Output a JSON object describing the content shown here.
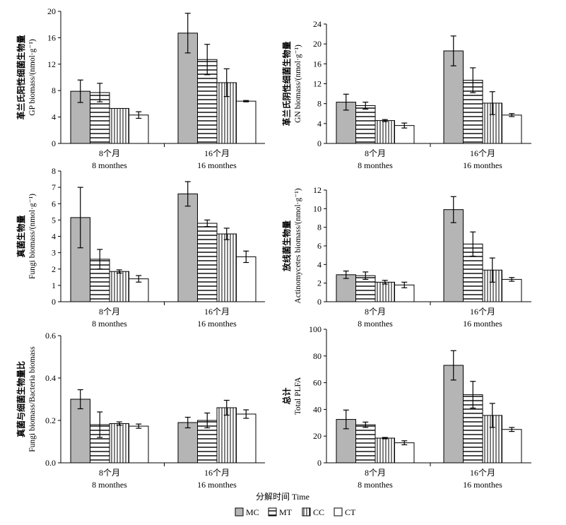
{
  "figure": {
    "x_title": "分解时间 Time",
    "legend": [
      {
        "key": "MC",
        "label": "MC"
      },
      {
        "key": "MT",
        "label": "MT"
      },
      {
        "key": "CC",
        "label": "CC"
      },
      {
        "key": "CT",
        "label": "CT"
      }
    ]
  },
  "chart_data": [
    {
      "type": "bar",
      "panel": "top-left",
      "ylabel_cn": "革兰氏阳性细菌生物量",
      "ylabel_en": "GP biomass/(nmol·g⁻¹)",
      "ylim": [
        0,
        20
      ],
      "yticks": [
        "0",
        "4",
        "8",
        "12",
        "16",
        "20"
      ],
      "categories": [
        {
          "cn": "8个月",
          "en": "8 monthes"
        },
        {
          "cn": "16个月",
          "en": "16 monthes"
        }
      ],
      "series": [
        {
          "name": "MC",
          "values": [
            7.9,
            16.7
          ],
          "errors": [
            1.7,
            3.0
          ]
        },
        {
          "name": "MT",
          "values": [
            7.7,
            12.7
          ],
          "errors": [
            1.4,
            2.3
          ]
        },
        {
          "name": "CC",
          "values": [
            5.3,
            9.2
          ],
          "errors": [
            0.0,
            2.1
          ]
        },
        {
          "name": "CT",
          "values": [
            4.3,
            6.4
          ],
          "errors": [
            0.5,
            0.1
          ]
        }
      ]
    },
    {
      "type": "bar",
      "panel": "top-right",
      "ylabel_cn": "革兰氏阴性细菌生物量",
      "ylabel_en": "GN biomass/(nmol·g⁻¹)",
      "ylim": [
        0,
        24
      ],
      "yticks": [
        "0",
        "4",
        "8",
        "12",
        "16",
        "20",
        "24"
      ],
      "categories": [
        {
          "cn": "8个月",
          "en": "8 monthes"
        },
        {
          "cn": "16个月",
          "en": "16 monthes"
        }
      ],
      "series": [
        {
          "name": "MC",
          "values": [
            8.3,
            18.6
          ],
          "errors": [
            1.6,
            3.0
          ]
        },
        {
          "name": "MT",
          "values": [
            7.6,
            12.7
          ],
          "errors": [
            0.7,
            2.5
          ]
        },
        {
          "name": "CC",
          "values": [
            4.6,
            8.1
          ],
          "errors": [
            0.2,
            2.3
          ]
        },
        {
          "name": "CT",
          "values": [
            3.6,
            5.7
          ],
          "errors": [
            0.5,
            0.3
          ]
        }
      ]
    },
    {
      "type": "bar",
      "panel": "middle-left",
      "ylabel_cn": "真菌生物量",
      "ylabel_en": "Fungi biomass/(nmol·g⁻¹)",
      "ylim": [
        0,
        8
      ],
      "yticks": [
        "0",
        "1",
        "2",
        "3",
        "4",
        "5",
        "6",
        "7",
        "8"
      ],
      "categories": [
        {
          "cn": "8个月",
          "en": "8 monthes"
        },
        {
          "cn": "16个月",
          "en": "16 monthes"
        }
      ],
      "series": [
        {
          "name": "MC",
          "values": [
            5.15,
            6.6
          ],
          "errors": [
            1.85,
            0.75
          ]
        },
        {
          "name": "MT",
          "values": [
            2.6,
            4.8
          ],
          "errors": [
            0.6,
            0.2
          ]
        },
        {
          "name": "CC",
          "values": [
            1.85,
            4.15
          ],
          "errors": [
            0.1,
            0.35
          ]
        },
        {
          "name": "CT",
          "values": [
            1.4,
            2.75
          ],
          "errors": [
            0.2,
            0.35
          ]
        }
      ]
    },
    {
      "type": "bar",
      "panel": "middle-right",
      "ylabel_cn": "放线菌生物量",
      "ylabel_en": "Actinomycetes biomass/(nmol·g⁻¹)",
      "ylim": [
        0,
        12
      ],
      "yticks": [
        "0",
        "2",
        "4",
        "6",
        "8",
        "10",
        "12"
      ],
      "categories": [
        {
          "cn": "8个月",
          "en": "8 monthes"
        },
        {
          "cn": "16个月",
          "en": "16 monthes"
        }
      ],
      "series": [
        {
          "name": "MC",
          "values": [
            2.9,
            9.9
          ],
          "errors": [
            0.4,
            1.4
          ]
        },
        {
          "name": "MT",
          "values": [
            2.8,
            6.2
          ],
          "errors": [
            0.4,
            1.3
          ]
        },
        {
          "name": "CC",
          "values": [
            2.1,
            3.4
          ],
          "errors": [
            0.2,
            1.3
          ]
        },
        {
          "name": "CT",
          "values": [
            1.8,
            2.4
          ],
          "errors": [
            0.3,
            0.2
          ]
        }
      ]
    },
    {
      "type": "bar",
      "panel": "bottom-left",
      "ylabel_cn": "真菌与细菌生物量比",
      "ylabel_en": "Fungi biomass/Bacteria biomass",
      "ylim": [
        0,
        0.6
      ],
      "yticks": [
        "0.0",
        "0.2",
        "0.4",
        "0.6"
      ],
      "categories": [
        {
          "cn": "8个月",
          "en": "8 monthes"
        },
        {
          "cn": "16个月",
          "en": "16 monthes"
        }
      ],
      "series": [
        {
          "name": "MC",
          "values": [
            0.3,
            0.19
          ],
          "errors": [
            0.045,
            0.025
          ]
        },
        {
          "name": "MT",
          "values": [
            0.18,
            0.2
          ],
          "errors": [
            0.06,
            0.035
          ]
        },
        {
          "name": "CC",
          "values": [
            0.185,
            0.26
          ],
          "errors": [
            0.008,
            0.035
          ]
        },
        {
          "name": "CT",
          "values": [
            0.173,
            0.23
          ],
          "errors": [
            0.01,
            0.02
          ]
        }
      ]
    },
    {
      "type": "bar",
      "panel": "bottom-right",
      "ylabel_cn": "总计",
      "ylabel_en": "Total PLFA",
      "ylim": [
        0,
        100
      ],
      "yticks": [
        "0",
        "20",
        "40",
        "60",
        "80",
        "100"
      ],
      "categories": [
        {
          "cn": "8个月",
          "en": "8 monthes"
        },
        {
          "cn": "16个月",
          "en": "16 monthes"
        }
      ],
      "series": [
        {
          "name": "MC",
          "values": [
            32.5,
            73
          ],
          "errors": [
            7,
            11
          ]
        },
        {
          "name": "MT",
          "values": [
            28.5,
            51
          ],
          "errors": [
            2,
            10
          ]
        },
        {
          "name": "CC",
          "values": [
            18.5,
            35.5
          ],
          "errors": [
            0.5,
            9
          ]
        },
        {
          "name": "CT",
          "values": [
            15,
            25
          ],
          "errors": [
            1.5,
            1.5
          ]
        }
      ]
    }
  ]
}
